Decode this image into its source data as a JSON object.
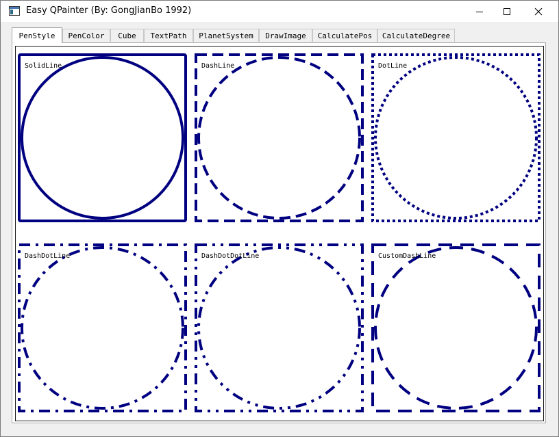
{
  "window": {
    "title": "Easy QPainter (By: GongJianBo 1992)",
    "controls": [
      "minimize",
      "maximize",
      "close"
    ]
  },
  "tabs": [
    {
      "label": "PenStyle",
      "active": true
    },
    {
      "label": "PenColor",
      "active": false
    },
    {
      "label": "Cube",
      "active": false
    },
    {
      "label": "TextPath",
      "active": false
    },
    {
      "label": "PlanetSystem",
      "active": false
    },
    {
      "label": "DrawImage",
      "active": false
    },
    {
      "label": "CalculatePos",
      "active": false
    },
    {
      "label": "CalculateDegree",
      "active": false
    }
  ],
  "pen_color": "#000080",
  "cells": [
    {
      "label": "SolidLine",
      "style": "solid"
    },
    {
      "label": "DashLine",
      "style": "dash"
    },
    {
      "label": "DotLine",
      "style": "dot"
    },
    {
      "label": "DashDotLine",
      "style": "dashdot"
    },
    {
      "label": "DashDotDotLine",
      "style": "dashdotdot"
    },
    {
      "label": "CustomDashLine",
      "style": "custom"
    }
  ]
}
